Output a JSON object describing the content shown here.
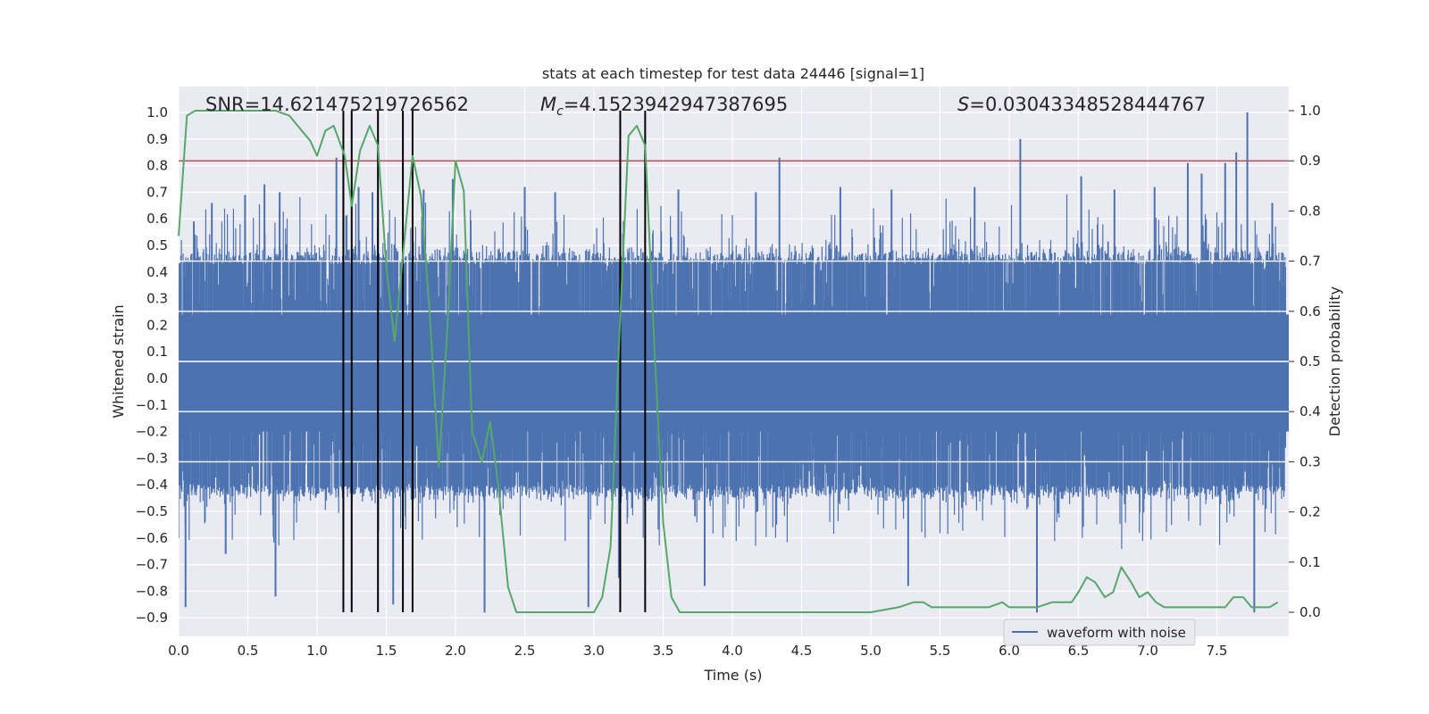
{
  "chart_data": {
    "type": "line",
    "title": "stats at each timestep for test data 24446 [signal=1]",
    "xlabel": "Time (s)",
    "ylabel": "Whitened strain",
    "y2label": "Detection probability",
    "xlim": [
      0.0,
      8.0
    ],
    "ylim": [
      -0.97,
      1.04
    ],
    "y2lim": [
      -0.045,
      1.035
    ],
    "xticks": [
      "0.0",
      "0.5",
      "1.0",
      "1.5",
      "2.0",
      "2.5",
      "3.0",
      "3.5",
      "4.0",
      "4.5",
      "5.0",
      "5.5",
      "6.0",
      "6.5",
      "7.0",
      "7.5"
    ],
    "yticks": [
      "-0.9",
      "-0.8",
      "-0.7",
      "-0.6",
      "-0.5",
      "-0.4",
      "-0.3",
      "-0.2",
      "-0.1",
      "0.0",
      "0.1",
      "0.2",
      "0.3",
      "0.4",
      "0.5",
      "0.6",
      "0.7",
      "0.8",
      "0.9",
      "1.0"
    ],
    "y2ticks": [
      "0.0",
      "0.1",
      "0.2",
      "0.3",
      "0.4",
      "0.5",
      "0.6",
      "0.7",
      "0.8",
      "0.9",
      "1.0"
    ],
    "annotations": {
      "snr": "SNR=14.621475219726562",
      "mc_symbol": "M",
      "mc_sub": "c",
      "mc_value": "=4.1523942947387695",
      "s_symbol": "S",
      "s_value": "=0.03043348528444767"
    },
    "legend": {
      "label": "waveform with noise",
      "placement": "lower-right"
    },
    "threshold": {
      "value": 0.9,
      "axis": "right",
      "color": "#c44e52"
    },
    "event_lines_s": [
      1.19,
      1.25,
      1.44,
      1.62,
      1.69,
      3.19,
      3.37
    ],
    "series": [
      {
        "name": "waveform with noise",
        "color": "#4c72b0",
        "axis": "left",
        "sample_rate_hz": 512,
        "envelope": {
          "typical_upper": 0.45,
          "typical_lower": -0.42,
          "max": 1.0,
          "min": -0.88,
          "peaks": [
            [
              0.05,
              -0.86
            ],
            [
              0.11,
              0.59
            ],
            [
              0.24,
              0.66
            ],
            [
              0.34,
              -0.66
            ],
            [
              0.48,
              0.69
            ],
            [
              0.62,
              0.73
            ],
            [
              0.7,
              -0.82
            ],
            [
              0.73,
              0.7
            ],
            [
              1.14,
              0.83
            ],
            [
              1.19,
              0.83
            ],
            [
              1.3,
              0.72
            ],
            [
              1.4,
              0.7
            ],
            [
              1.55,
              -0.85
            ],
            [
              1.77,
              0.71
            ],
            [
              1.98,
              0.75
            ],
            [
              2.21,
              -0.88
            ],
            [
              2.5,
              0.72
            ],
            [
              2.72,
              0.7
            ],
            [
              2.96,
              -0.86
            ],
            [
              3.18,
              -0.75
            ],
            [
              3.61,
              0.71
            ],
            [
              3.8,
              -0.78
            ],
            [
              4.17,
              0.7
            ],
            [
              4.34,
              0.83
            ],
            [
              4.78,
              0.72
            ],
            [
              5.15,
              0.71
            ],
            [
              5.27,
              -0.78
            ],
            [
              5.75,
              0.72
            ],
            [
              6.08,
              0.9
            ],
            [
              6.2,
              -0.88
            ],
            [
              6.52,
              0.76
            ],
            [
              6.76,
              0.71
            ],
            [
              7.05,
              0.72
            ],
            [
              7.29,
              0.81
            ],
            [
              7.39,
              0.77
            ],
            [
              7.56,
              0.81
            ],
            [
              7.64,
              0.85
            ],
            [
              7.72,
              1.0
            ],
            [
              7.77,
              -0.88
            ],
            [
              7.9,
              0.66
            ]
          ]
        }
      },
      {
        "name": "detection probability",
        "color": "#55a868",
        "axis": "right",
        "x": [
          0.0,
          0.06,
          0.12,
          0.25,
          0.5,
          0.6,
          0.7,
          0.8,
          0.86,
          0.95,
          1.0,
          1.06,
          1.12,
          1.2,
          1.25,
          1.31,
          1.38,
          1.44,
          1.5,
          1.56,
          1.62,
          1.69,
          1.75,
          1.81,
          1.88,
          1.94,
          2.0,
          2.06,
          2.12,
          2.19,
          2.25,
          2.31,
          2.38,
          2.44,
          2.5,
          2.6,
          2.75,
          2.9,
          3.0,
          3.06,
          3.12,
          3.19,
          3.25,
          3.31,
          3.37,
          3.44,
          3.5,
          3.56,
          3.62,
          3.69,
          3.8,
          4.0,
          4.2,
          4.5,
          4.8,
          5.0,
          5.2,
          5.31,
          5.38,
          5.44,
          5.5,
          5.6,
          5.75,
          5.85,
          5.95,
          6.0,
          6.06,
          6.12,
          6.2,
          6.31,
          6.38,
          6.45,
          6.5,
          6.56,
          6.62,
          6.69,
          6.75,
          6.81,
          6.88,
          6.94,
          7.0,
          7.06,
          7.12,
          7.25,
          7.38,
          7.5,
          7.56,
          7.62,
          7.69,
          7.75,
          7.81,
          7.88,
          7.94
        ],
        "y": [
          0.75,
          0.99,
          1.0,
          1.0,
          1.0,
          1.0,
          1.0,
          0.99,
          0.97,
          0.94,
          0.91,
          0.96,
          0.97,
          0.91,
          0.81,
          0.92,
          0.97,
          0.93,
          0.69,
          0.54,
          0.71,
          0.91,
          0.83,
          0.61,
          0.29,
          0.56,
          0.9,
          0.84,
          0.36,
          0.3,
          0.38,
          0.25,
          0.05,
          0.0,
          0.0,
          0.0,
          0.0,
          0.0,
          0.0,
          0.03,
          0.13,
          0.59,
          0.95,
          0.97,
          0.93,
          0.51,
          0.18,
          0.03,
          0.0,
          0.0,
          0.0,
          0.0,
          0.0,
          0.0,
          0.0,
          0.0,
          0.01,
          0.02,
          0.02,
          0.01,
          0.01,
          0.01,
          0.01,
          0.01,
          0.02,
          0.01,
          0.01,
          0.01,
          0.01,
          0.02,
          0.02,
          0.02,
          0.04,
          0.07,
          0.06,
          0.03,
          0.04,
          0.09,
          0.06,
          0.03,
          0.04,
          0.02,
          0.01,
          0.01,
          0.01,
          0.01,
          0.01,
          0.03,
          0.03,
          0.01,
          0.01,
          0.01,
          0.02
        ]
      }
    ]
  }
}
